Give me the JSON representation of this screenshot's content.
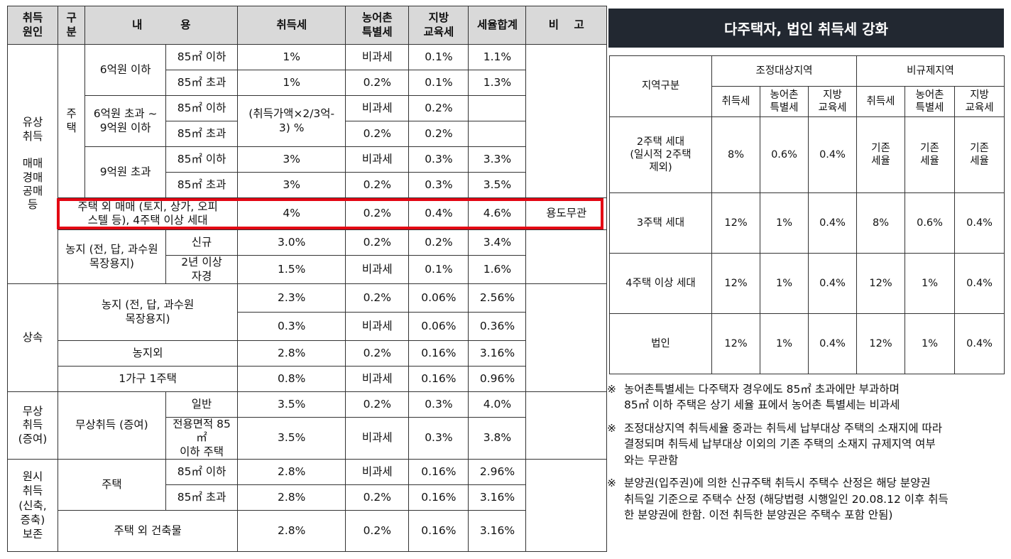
{
  "left": {
    "headers": {
      "cause": "취득\n원인",
      "class": "구\n분",
      "content": "내          용",
      "tax": "취득세",
      "rural": "농어촌\n특별세",
      "edu": "지방\n교육세",
      "total": "세율합계",
      "note": "비    고"
    },
    "cause_paid": "유상\n취득\n\n매매\n경매\n공매\n등",
    "class_house": "주\n택",
    "g1": "6억원 이하",
    "g2": "6억원 초과 ~\n9억원 이하",
    "g3": "9억원 초과",
    "area_le": "85㎡ 이하",
    "area_gt": "85㎡ 초과",
    "formula": "(취득가액×2/3억-\n3) %",
    "r1": {
      "tax": "1%",
      "rural": "비과세",
      "edu": "0.1%",
      "total": "1.1%"
    },
    "r2": {
      "tax": "1%",
      "rural": "0.2%",
      "edu": "0.1%",
      "total": "1.3%"
    },
    "r3": {
      "rural": "비과세",
      "edu": "0.2%"
    },
    "r4": {
      "rural": "0.2%",
      "edu": "0.2%"
    },
    "r5": {
      "tax": "3%",
      "rural": "비과세",
      "edu": "0.3%",
      "total": "3.3%"
    },
    "r6": {
      "tax": "3%",
      "rural": "0.2%",
      "edu": "0.3%",
      "total": "3.5%"
    },
    "r7": {
      "label": "주택 외 매매 (토지, 상가, 오피\n스텔 등), 4주택 이상 세대",
      "tax": "4%",
      "rural": "0.2%",
      "edu": "0.4%",
      "total": "4.6%",
      "note": "용도무관"
    },
    "farm": "농지 (전, 답, 과수원\n목장용지)",
    "new": "신규",
    "two_year": "2년 이상\n자경",
    "general": "일반",
    "r8": {
      "tax": "3.0%",
      "rural": "0.2%",
      "edu": "0.2%",
      "total": "3.4%"
    },
    "r9": {
      "tax": "1.5%",
      "rural": "비과세",
      "edu": "0.1%",
      "total": "1.6%"
    },
    "cause_inherit": "상속",
    "r10": {
      "tax": "2.3%",
      "rural": "0.2%",
      "edu": "0.06%",
      "total": "2.56%"
    },
    "r11": {
      "tax": "0.3%",
      "rural": "비과세",
      "edu": "0.06%",
      "total": "0.36%"
    },
    "r12": {
      "label": "농지외",
      "tax": "2.8%",
      "rural": "0.2%",
      "edu": "0.16%",
      "total": "3.16%"
    },
    "r13": {
      "label": "1가구 1주택",
      "tax": "0.8%",
      "rural": "비과세",
      "edu": "0.16%",
      "total": "0.96%"
    },
    "cause_free": "무상\n취득\n(증여)",
    "gift": "무상취득 (증여)",
    "gift_general": "일반",
    "gift_small": "전용면적 85㎡\n이하 주택",
    "r14": {
      "tax": "3.5%",
      "rural": "0.2%",
      "edu": "0.3%",
      "total": "4.0%"
    },
    "r15": {
      "tax": "3.5%",
      "rural": "비과세",
      "edu": "0.3%",
      "total": "3.8%"
    },
    "cause_original": "원시\n취득\n(신축,\n증축)\n보존",
    "house": "주택",
    "r16": {
      "tax": "2.8%",
      "rural": "비과세",
      "edu": "0.16%",
      "total": "2.96%"
    },
    "r17": {
      "tax": "2.8%",
      "rural": "0.2%",
      "edu": "0.16%",
      "total": "3.16%"
    },
    "r18": {
      "label": "주택 외 건축물",
      "tax": "2.8%",
      "rural": "0.2%",
      "edu": "0.16%",
      "total": "3.16%"
    }
  },
  "right": {
    "title": "다주택자, 법인 취득세 강화",
    "region_header": "지역구분",
    "adjusted": "조정대상지역",
    "non_regulated": "비규제지역",
    "sub": [
      "취득세",
      "농어촌\n특별세",
      "지방\n교육세",
      "취득세",
      "농어촌\n특별세",
      "지방\n교육세"
    ],
    "rows": [
      {
        "label": "2주택 세대\n(일시적 2주택\n제외)",
        "values": [
          "8%",
          "0.6%",
          "0.4%",
          "기존\n세율",
          "기존\n세율",
          "기존\n세율"
        ]
      },
      {
        "label": "3주택 세대",
        "values": [
          "12%",
          "1%",
          "0.4%",
          "8%",
          "0.6%",
          "0.4%"
        ]
      },
      {
        "label": "4주택 이상 세대",
        "values": [
          "12%",
          "1%",
          "0.4%",
          "12%",
          "1%",
          "0.4%"
        ]
      },
      {
        "label": "법인",
        "values": [
          "12%",
          "1%",
          "0.4%",
          "12%",
          "1%",
          "0.4%"
        ]
      }
    ]
  },
  "notes": [
    {
      "mark": "※",
      "lines": [
        "농어촌특별세는 다주택자 경우에도 85㎡ 초과에만 부과하며",
        "85㎡ 이하 주택은 상기 세율 표에서 농어촌 특별세는 비과세"
      ]
    },
    {
      "mark": "※",
      "lines": [
        "조정대상지역 취득세율 중과는 취득세 납부대상 주택의 소재지에 따라",
        "결정되며 취득세 납부대상 이외의 기존 주택의 소재지 규제지역 여부",
        "와는 무관함"
      ]
    },
    {
      "mark": "※",
      "lines": [
        "분양권(입주권)에 의한 신규주택 취득시 주택수 산정은 해당 분양권",
        "취득일 기준으로 주택수 산정 (해당법령 시행일인 20.08.12 이후 취득",
        "한 분양권에 한함. 이전 취득한 분양권은 주택수 포함 안됨)"
      ]
    }
  ]
}
